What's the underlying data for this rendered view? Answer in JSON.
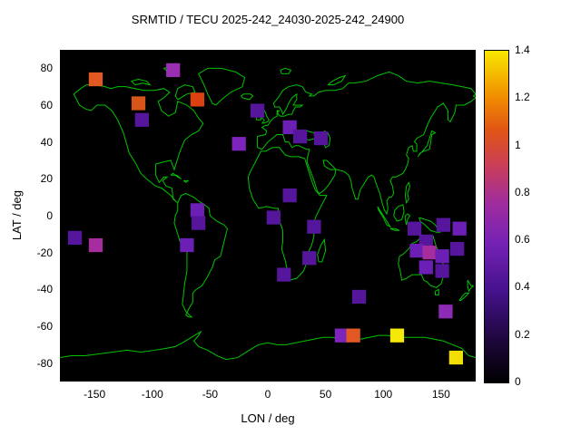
{
  "title": "SRMTID / TECU 2025-242_24030-2025-242_24900",
  "axes": {
    "xlabel": "LON / deg",
    "ylabel": "LAT / deg"
  },
  "chart_data": {
    "type": "heatmap",
    "title": "SRMTID / TECU 2025-242_24030-2025-242_24900",
    "xlabel": "LON / deg",
    "ylabel": "LAT / deg",
    "xlim": [
      -180,
      180
    ],
    "ylim": [
      -90,
      90
    ],
    "x_ticks": [
      -150,
      -100,
      -50,
      0,
      50,
      100,
      150
    ],
    "y_ticks": [
      80,
      60,
      40,
      20,
      0,
      -20,
      -40,
      -60,
      -80
    ],
    "grid": false,
    "map_background_color": "#000000",
    "coastline_color": "#00c400",
    "value_unit": "TECU",
    "colorbar": {
      "min": 0,
      "max": 1.4,
      "tick_values": [
        0,
        0.2,
        0.4,
        0.6,
        0.8,
        1,
        1.2,
        1.4
      ],
      "tick_labels": [
        "0",
        "0.2",
        "0.4",
        "0.6",
        "0.8",
        "1",
        "1.2",
        "1.4"
      ],
      "palette": [
        {
          "t": 0.0,
          "color": "#000000"
        },
        {
          "t": 0.12,
          "color": "#1c0638"
        },
        {
          "t": 0.28,
          "color": "#46128e"
        },
        {
          "t": 0.42,
          "color": "#7522b4"
        },
        {
          "t": 0.54,
          "color": "#a02d9e"
        },
        {
          "t": 0.66,
          "color": "#cc3f55"
        },
        {
          "t": 0.76,
          "color": "#e05515"
        },
        {
          "t": 0.86,
          "color": "#f08c00"
        },
        {
          "t": 1.0,
          "color": "#f8e800"
        }
      ]
    },
    "cell_size_deg": {
      "lon": 12,
      "lat": 7.5
    },
    "cells": [
      {
        "lon": -149,
        "lat": 74,
        "value": 0.75,
        "color": "#e25822"
      },
      {
        "lon": -82,
        "lat": 79,
        "value": 0.45,
        "color": "#9a2fb4"
      },
      {
        "lon": -112,
        "lat": 61,
        "value": 0.7,
        "color": "#d8551a"
      },
      {
        "lon": -61,
        "lat": 63,
        "value": 0.8,
        "color": "#dd4111"
      },
      {
        "lon": -109,
        "lat": 52,
        "value": 0.3,
        "color": "#55169c"
      },
      {
        "lon": -9,
        "lat": 57,
        "value": 0.3,
        "color": "#55169c"
      },
      {
        "lon": 19,
        "lat": 48,
        "value": 0.35,
        "color": "#6b1fb4"
      },
      {
        "lon": 28,
        "lat": 43,
        "value": 0.3,
        "color": "#55169c"
      },
      {
        "lon": -25,
        "lat": 39,
        "value": 0.4,
        "color": "#7d24bc"
      },
      {
        "lon": 46,
        "lat": 42,
        "value": 0.3,
        "color": "#55169c"
      },
      {
        "lon": 19,
        "lat": 11,
        "value": 0.3,
        "color": "#55169c"
      },
      {
        "lon": -61,
        "lat": 3,
        "value": 0.35,
        "color": "#6b1fb4"
      },
      {
        "lon": 5,
        "lat": -1,
        "value": 0.3,
        "color": "#55169c"
      },
      {
        "lon": -60,
        "lat": -4,
        "value": 0.3,
        "color": "#55169c"
      },
      {
        "lon": 40,
        "lat": -6,
        "value": 0.3,
        "color": "#55169c"
      },
      {
        "lon": -167,
        "lat": -12,
        "value": 0.3,
        "color": "#55169c"
      },
      {
        "lon": -149,
        "lat": -16,
        "value": 0.5,
        "color": "#a62d9e"
      },
      {
        "lon": -70,
        "lat": -16,
        "value": 0.35,
        "color": "#6b1fb4"
      },
      {
        "lon": 36,
        "lat": -23,
        "value": 0.3,
        "color": "#55169c"
      },
      {
        "lon": 127,
        "lat": -7,
        "value": 0.3,
        "color": "#55169c"
      },
      {
        "lon": 152,
        "lat": -5,
        "value": 0.3,
        "color": "#55169c"
      },
      {
        "lon": 166,
        "lat": -7,
        "value": 0.35,
        "color": "#6b1fb4"
      },
      {
        "lon": 137,
        "lat": -14,
        "value": 0.3,
        "color": "#55169c"
      },
      {
        "lon": 129,
        "lat": -19,
        "value": 0.35,
        "color": "#6b1fb4"
      },
      {
        "lon": 140,
        "lat": -20,
        "value": 0.5,
        "color": "#a62d9e"
      },
      {
        "lon": 151,
        "lat": -22,
        "value": 0.35,
        "color": "#6b1fb4"
      },
      {
        "lon": 164,
        "lat": -18,
        "value": 0.3,
        "color": "#55169c"
      },
      {
        "lon": 137,
        "lat": -28,
        "value": 0.35,
        "color": "#6b1fb4"
      },
      {
        "lon": 151,
        "lat": -30,
        "value": 0.3,
        "color": "#55169c"
      },
      {
        "lon": 14,
        "lat": -32,
        "value": 0.3,
        "color": "#55169c"
      },
      {
        "lon": 79,
        "lat": -44,
        "value": 0.3,
        "color": "#55169c"
      },
      {
        "lon": 154,
        "lat": -52,
        "value": 0.45,
        "color": "#8d2bb4"
      },
      {
        "lon": 64,
        "lat": -65,
        "value": 0.4,
        "color": "#7d24bc"
      },
      {
        "lon": 74,
        "lat": -65,
        "value": 0.75,
        "color": "#e25822"
      },
      {
        "lon": 112,
        "lat": -65,
        "value": 1.35,
        "color": "#f5e90a"
      },
      {
        "lon": 163,
        "lat": -77,
        "value": 1.3,
        "color": "#f2df05"
      }
    ]
  }
}
